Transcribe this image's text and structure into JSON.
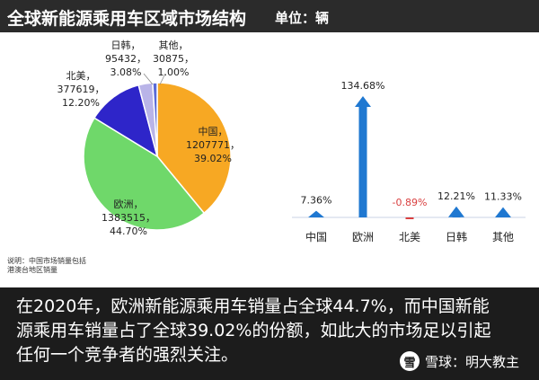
{
  "header": {
    "title": "全球新能源乘用车区域市场结构",
    "unit": "单位：辆"
  },
  "note": "说明：中国市场销量包括港澳台地区销量",
  "caption": "在2020年，欧洲新能源乘用车销量占全球44.7%，而中国新能源乘用车销量占了全球39.02%的份额，如此大的市场足以引起任何一个竞争者的强烈关注。",
  "brand": {
    "name": "雪球：明大教主",
    "logo_glyph": "雪"
  },
  "chart_data": [
    {
      "type": "pie",
      "slices": [
        {
          "label": "中国",
          "value": 1207771,
          "value_text": "1207771，",
          "percent_text": "39.02%",
          "color": "#f7a823"
        },
        {
          "label": "欧洲",
          "value": 1383515,
          "value_text": "1383515，",
          "percent_text": "44.70%",
          "color": "#6fd86a"
        },
        {
          "label": "北美",
          "value": 377619,
          "value_text": "377619，",
          "percent_text": "12.20%",
          "color": "#2e25c9"
        },
        {
          "label": "日韩",
          "value": 95432,
          "value_text": "95432，",
          "percent_text": "3.08%",
          "color": "#b9b4e8"
        },
        {
          "label": "其他",
          "value": 30875,
          "value_text": "30875，",
          "percent_text": "1.00%",
          "color": "#5b6bd6"
        }
      ]
    },
    {
      "type": "bar",
      "categories": [
        "中国",
        "欧洲",
        "北美",
        "日韩",
        "其他"
      ],
      "values": [
        7.36,
        134.68,
        -0.89,
        12.21,
        11.33
      ],
      "labels": [
        "7.36%",
        "134.68%",
        "-0.89%",
        "12.21%",
        "11.33%"
      ],
      "colors": {
        "positive": "#1f78d1",
        "negative": "#d94040"
      },
      "grid": false
    }
  ]
}
